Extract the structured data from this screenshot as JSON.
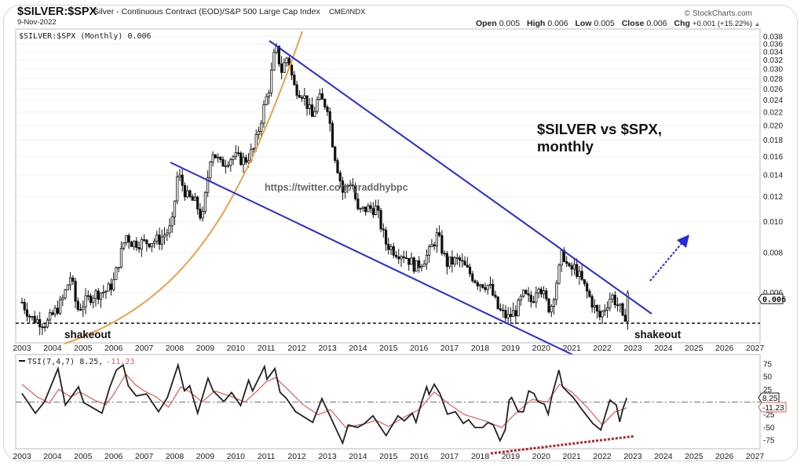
{
  "header": {
    "symbol": "$SILVER:$SPX",
    "description": "Silver - Continuous Contract (EOD)/S&P 500 Large Cap Index",
    "exchange": "CME/INDX",
    "date": "9-Nov-2022",
    "copyright": "© StockCharts.com",
    "ohlc": {
      "open_label": "Open",
      "open": "0.005",
      "high_label": "High",
      "high": "0.006",
      "low_label": "Low",
      "low": "0.005",
      "close_label": "Close",
      "close": "0.006",
      "chg_label": "Chg",
      "chg": "+0.001 (+15.22%)",
      "chg_arrow": "▲"
    }
  },
  "colors": {
    "trendline": "#2a2ad8",
    "parabola": "#e8a24a",
    "tsi_line": "#222222",
    "tsi_signal": "#e05a5a",
    "divergence": "#b0282a",
    "up_arrow": "#2a2ad8"
  },
  "annotations": {
    "title_line1": "$SILVER vs $SPX,",
    "title_line2": "monthly",
    "watermark": "https://twitter.com/graddhybpc",
    "shakeout_left": "shakeout",
    "shakeout_right": "shakeout"
  },
  "chart_data": [
    {
      "type": "candlestick",
      "legend": "$SILVER:$SPX (Monthly) 0.006",
      "y_scale": "log",
      "ylim": [
        0.0045,
        0.039
      ],
      "y_ticks": [
        "0.038",
        "0.036",
        "0.034",
        "0.032",
        "0.030",
        "0.028",
        "0.026",
        "0.024",
        "0.022",
        "0.020",
        "0.018",
        "0.016",
        "0.014",
        "0.012",
        "0.010",
        "0.008",
        "0.006"
      ],
      "x_ticks": [
        "2003",
        "2004",
        "2005",
        "2006",
        "2007",
        "2008",
        "2009",
        "2010",
        "2011",
        "2012",
        "2013",
        "2014",
        "2015",
        "2016",
        "2017",
        "2018",
        "2019",
        "2020",
        "2021",
        "2022",
        "2023",
        "2024",
        "2025",
        "2026",
        "2027"
      ],
      "last_value_label": "0.006",
      "shakeout_level": 0.0048,
      "close_path": {
        "x": [
          2003.0,
          2003.3,
          2003.8,
          2004.3,
          2004.6,
          2004.8,
          2005.3,
          2005.8,
          2006.0,
          2006.4,
          2006.6,
          2007.0,
          2007.5,
          2007.9,
          2008.1,
          2008.4,
          2008.7,
          2008.9,
          2009.2,
          2009.5,
          2009.9,
          2010.3,
          2010.6,
          2010.9,
          2011.1,
          2011.3,
          2011.5,
          2011.7,
          2011.9,
          2012.2,
          2012.5,
          2012.7,
          2013.0,
          2013.2,
          2013.5,
          2013.8,
          2014.0,
          2014.3,
          2014.6,
          2014.9,
          2015.2,
          2015.5,
          2015.9,
          2016.3,
          2016.6,
          2016.9,
          2017.3,
          2017.6,
          2017.9,
          2018.3,
          2018.6,
          2018.9,
          2019.2,
          2019.4,
          2019.7,
          2019.9,
          2020.2,
          2020.3,
          2020.6,
          2020.7,
          2020.9,
          2021.1,
          2021.4,
          2021.7,
          2021.9,
          2022.3,
          2022.6,
          2022.7,
          2022.85
        ],
        "y": [
          0.0056,
          0.005,
          0.0048,
          0.0056,
          0.0068,
          0.0053,
          0.0059,
          0.0061,
          0.0065,
          0.0091,
          0.0086,
          0.0086,
          0.0088,
          0.0096,
          0.0142,
          0.012,
          0.0114,
          0.0101,
          0.0169,
          0.0151,
          0.016,
          0.0155,
          0.0169,
          0.0224,
          0.0265,
          0.0352,
          0.0297,
          0.0332,
          0.0265,
          0.0251,
          0.0212,
          0.0244,
          0.023,
          0.0169,
          0.0124,
          0.0135,
          0.0107,
          0.011,
          0.011,
          0.0086,
          0.0081,
          0.0079,
          0.0072,
          0.0079,
          0.0091,
          0.0074,
          0.0076,
          0.007,
          0.0065,
          0.0063,
          0.0053,
          0.005,
          0.0053,
          0.0059,
          0.0056,
          0.0065,
          0.0055,
          0.0053,
          0.0072,
          0.0081,
          0.007,
          0.0072,
          0.0063,
          0.0055,
          0.005,
          0.0059,
          0.0053,
          0.0047,
          0.006
        ]
      }
    },
    {
      "type": "line",
      "legend_prefix": "TSI(7,4,7) 8.25,",
      "legend_signal": "-11.23",
      "ylim": [
        -95,
        90
      ],
      "y_ticks": [
        "75",
        "50",
        "25",
        "-25",
        "-50",
        "-75"
      ],
      "y_tick_values": [
        75,
        50,
        25,
        -25,
        -50,
        -75
      ],
      "x_ticks": [
        "2003",
        "2004",
        "2005",
        "2006",
        "2007",
        "2008",
        "2009",
        "2010",
        "2011",
        "2012",
        "2013",
        "2014",
        "2015",
        "2016",
        "2017",
        "2018",
        "2019",
        "2020",
        "2021",
        "2022",
        "2023",
        "2024",
        "2025",
        "2026",
        "2027"
      ],
      "last_tsi_label": "8.25",
      "last_signal_label": "-11.23",
      "series": [
        {
          "x": [
            2003.0,
            2003.44,
            2003.74,
            2004.18,
            2004.42,
            2004.85,
            2005.02,
            2005.62,
            2005.88,
            2006.09,
            2006.31,
            2006.48,
            2006.74,
            2007.08,
            2007.47,
            2007.76,
            2008.11,
            2008.32,
            2008.49,
            2008.75,
            2009.09,
            2009.26,
            2009.61,
            2009.86,
            2010.16,
            2010.42,
            2010.55,
            2010.94,
            2011.02,
            2011.28,
            2011.45,
            2011.66,
            2011.96,
            2012.52,
            2012.82,
            2013.5,
            2013.68,
            2013.98,
            2014.2,
            2014.49,
            2014.92,
            2015.31,
            2015.52,
            2015.78,
            2015.9,
            2016.08,
            2016.25,
            2016.33,
            2016.5,
            2016.68,
            2016.93,
            2017.19,
            2017.45,
            2017.62,
            2017.83,
            2018.09,
            2018.26,
            2018.43,
            2018.65,
            2018.82,
            2018.95,
            2019.03,
            2019.25,
            2019.42,
            2019.59,
            2019.76,
            2019.89,
            2020.1,
            2020.23,
            2020.36,
            2020.58,
            2020.7,
            2021.05,
            2021.3,
            2021.69,
            2021.95,
            2022.25,
            2022.46,
            2022.57,
            2022.67,
            2022.8
          ],
          "y": [
            17,
            -22,
            1,
            66,
            -6,
            30,
            -1,
            -22,
            30,
            63,
            73,
            32,
            12,
            16,
            -19,
            9,
            73,
            22,
            32,
            -22,
            47,
            22,
            1,
            19,
            -7,
            43,
            22,
            70,
            45,
            66,
            19,
            7,
            -19,
            -40,
            7,
            -81,
            -45,
            -50,
            -43,
            -27,
            -66,
            -27,
            -37,
            -22,
            -40,
            -1,
            30,
            15,
            35,
            17,
            -24,
            -19,
            -42,
            -35,
            -50,
            -50,
            -40,
            -45,
            -76,
            -55,
            4,
            9,
            -19,
            -19,
            22,
            17,
            1,
            -4,
            -24,
            15,
            63,
            30,
            9,
            -12,
            -42,
            -55,
            4,
            -6,
            -39,
            -14,
            8.25
          ]
        },
        {
          "x": [
            2003.0,
            2003.5,
            2003.9,
            2004.2,
            2004.6,
            2004.9,
            2005.4,
            2005.75,
            2006.0,
            2006.4,
            2006.7,
            2007.0,
            2007.4,
            2007.8,
            2008.2,
            2008.5,
            2008.9,
            2009.3,
            2009.8,
            2010.3,
            2010.7,
            2011.0,
            2011.3,
            2011.7,
            2012.2,
            2012.7,
            2013.1,
            2013.6,
            2014.2,
            2014.6,
            2015.0,
            2015.5,
            2016.0,
            2016.5,
            2017.0,
            2017.5,
            2018.2,
            2018.7,
            2019.2,
            2019.7,
            2020.2,
            2020.6,
            2021.0,
            2021.5,
            2022.0,
            2022.4,
            2022.8
          ],
          "y": [
            35,
            10,
            -2,
            25,
            10,
            20,
            3,
            -5,
            15,
            55,
            35,
            22,
            10,
            -10,
            30,
            20,
            0,
            22,
            12,
            0,
            22,
            40,
            48,
            25,
            -5,
            -25,
            -15,
            -50,
            -43,
            -36,
            -48,
            -30,
            -15,
            20,
            -5,
            -25,
            -38,
            -50,
            -20,
            5,
            0,
            35,
            20,
            -10,
            -45,
            -20,
            -11.23
          ]
        }
      ]
    }
  ]
}
